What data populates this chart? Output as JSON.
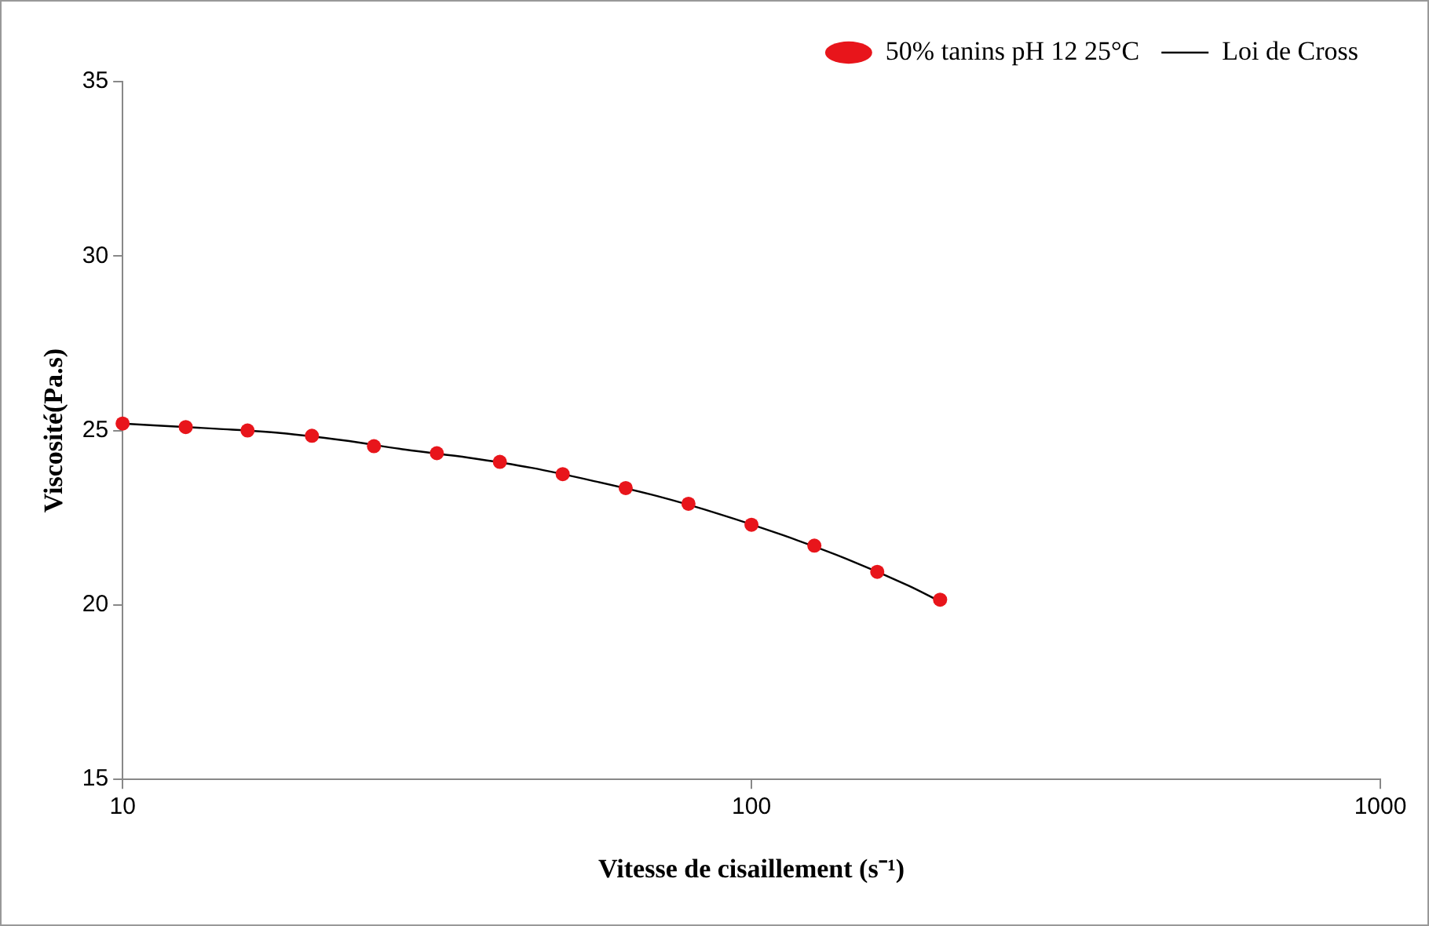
{
  "chart_data": {
    "type": "scatter",
    "xlabel": "Vitesse de cisaillement (s⁻¹)",
    "ylabel": "Viscosité(Pa.s)",
    "log": "x",
    "xlim": [
      10,
      1000
    ],
    "xticks": [
      10,
      100,
      1000
    ],
    "ylim": [
      15,
      35
    ],
    "yticks": [
      15,
      20,
      25,
      30,
      35
    ],
    "grid": false,
    "legend": "top right",
    "series": [
      {
        "name": "50% tanins pH 12 25°C",
        "marker": "circle",
        "color": "#e8151b",
        "x": [
          10,
          12.6,
          15.8,
          20,
          25.1,
          31.6,
          39.8,
          50.1,
          63.1,
          79.4,
          100,
          125.9,
          158.5,
          199.5
        ],
        "values": [
          25.2,
          25.1,
          25.0,
          24.85,
          24.55,
          24.35,
          24.1,
          23.75,
          23.35,
          22.9,
          22.3,
          21.7,
          20.95,
          20.15
        ]
      },
      {
        "name": "Loi de Cross",
        "type": "line",
        "marker": "none",
        "color": "#000000",
        "line_style": "solid",
        "x": [
          10,
          11.2,
          14.1,
          17.8,
          22.4,
          28.2,
          35.5,
          44.7,
          56.2,
          70.8,
          89.1,
          112.2,
          141.3,
          177.8,
          199.5
        ],
        "values": [
          25.2,
          25.15,
          25.05,
          24.93,
          24.72,
          24.45,
          24.22,
          23.93,
          23.55,
          23.12,
          22.6,
          22.0,
          21.33,
          20.55,
          20.1
        ]
      }
    ]
  }
}
